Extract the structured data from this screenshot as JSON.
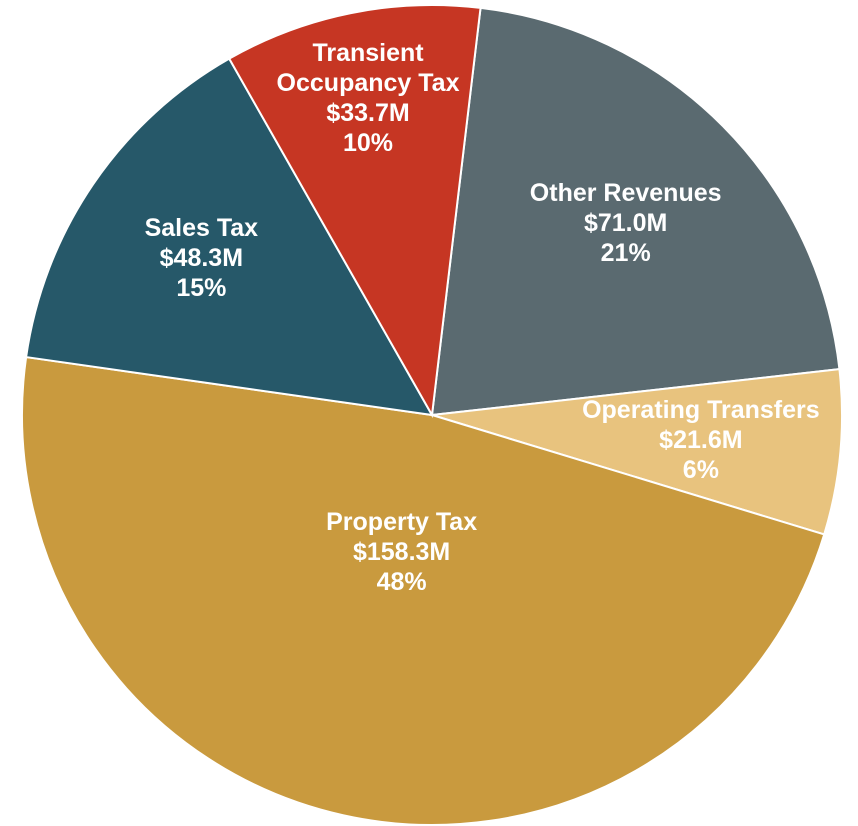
{
  "chart_data": {
    "type": "pie",
    "categories": [
      "Other Revenues",
      "Operating Transfers",
      "Property Tax",
      "Sales Tax",
      "Transient Occupancy Tax"
    ],
    "values": [
      71.0,
      21.6,
      158.3,
      48.3,
      33.7
    ],
    "value_labels": [
      "$71.0M",
      "$21.6M",
      "$158.3M",
      "$48.3M",
      "$33.7M"
    ],
    "percents": [
      21,
      6,
      48,
      15,
      10
    ],
    "percent_labels": [
      "21%",
      "6%",
      "48%",
      "15%",
      "10%"
    ],
    "colors": [
      "#5a6a70",
      "#e8c37e",
      "#c99a3e",
      "#265869",
      "#c63623"
    ]
  }
}
